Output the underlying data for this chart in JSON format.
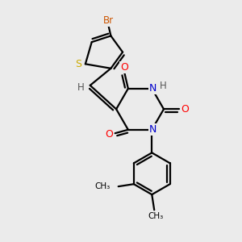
{
  "background_color": "#ebebeb",
  "bond_color": "#000000",
  "bond_width": 1.6,
  "atom_colors": {
    "Br": "#cc5500",
    "S": "#ccaa00",
    "O": "#ff0000",
    "N": "#0000cc",
    "H": "#555555",
    "C": "#000000"
  },
  "figsize": [
    3.0,
    3.0
  ],
  "dpi": 100
}
